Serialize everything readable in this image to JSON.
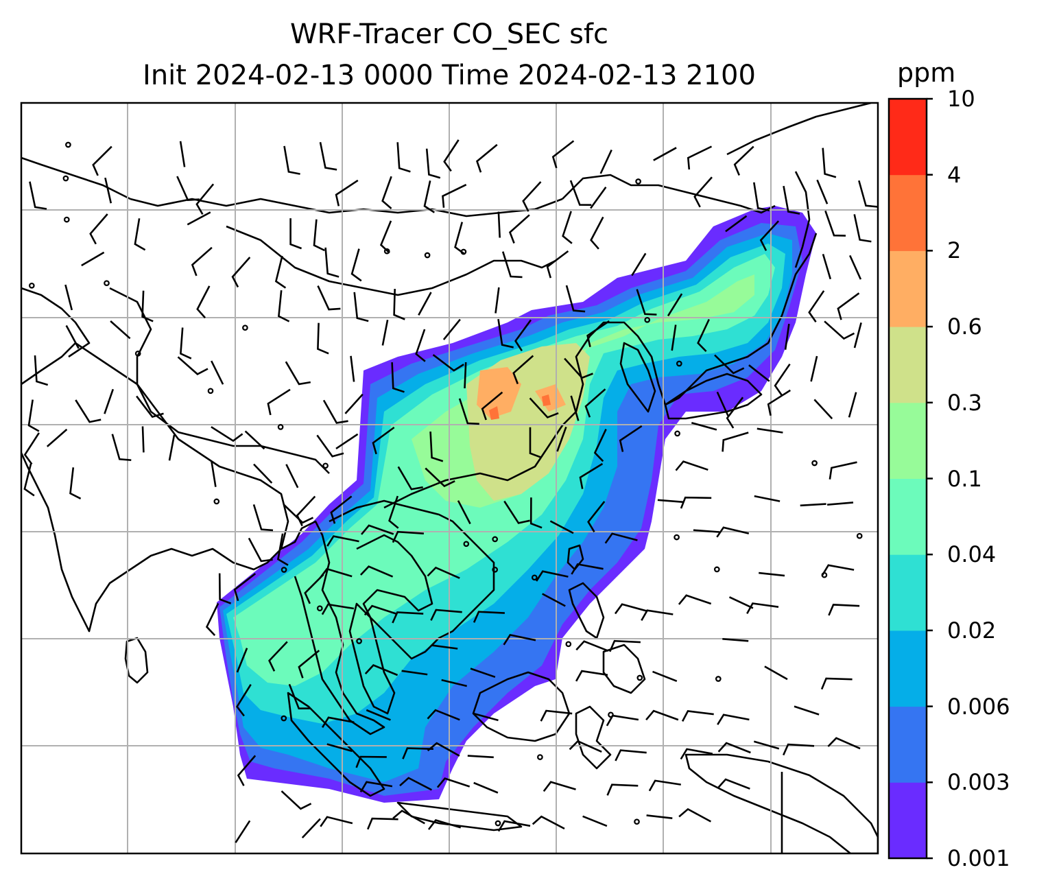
{
  "title": {
    "line1": "WRF-Tracer CO_SEC sfc",
    "line2": "Init 2024-02-13 0000 Time 2024-02-13 2100"
  },
  "colorbar": {
    "unit": "ppm",
    "ticks": [
      "0.001",
      "0.003",
      "0.006",
      "0.02",
      "0.04",
      "0.1",
      "0.3",
      "0.6",
      "2",
      "4",
      "10"
    ],
    "colors": [
      "#6a2cff",
      "#3575f2",
      "#05aee8",
      "#2fe0d3",
      "#6cfbbb",
      "#97fb99",
      "#cfe18a",
      "#ffae63",
      "#ff7338",
      "#ff2a18"
    ]
  },
  "map": {
    "projection": "mercator",
    "region": "South, Southeast and East Asia",
    "field": "CO_SEC surface concentration (filled contours)",
    "overlay": "wind barbs",
    "gridlines": true
  }
}
